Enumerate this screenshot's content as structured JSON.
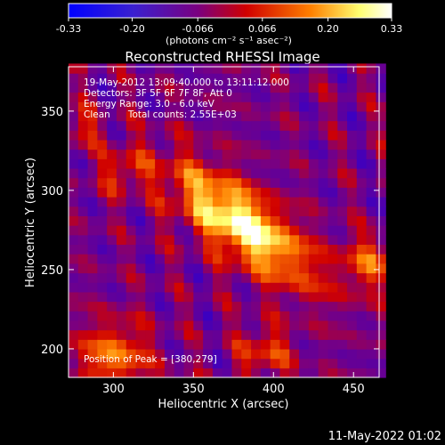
{
  "colorbar": {
    "tick_labels": [
      "-0.33",
      "-0.20",
      "-0.066",
      "0.066",
      "0.20",
      "0.33"
    ],
    "tick_values": [
      -0.33,
      -0.2,
      -0.066,
      0.066,
      0.2,
      0.33
    ],
    "range": [
      -0.33,
      0.33
    ],
    "unit_label": "(photons cm⁻² s⁻¹ asec⁻²)"
  },
  "chart_data": {
    "type": "heatmap",
    "title": "Reconstructed RHESSI Image",
    "xlabel": "Heliocentric X (arcsec)",
    "ylabel": "Heliocentric Y (arcsec)",
    "xlim": [
      272,
      466
    ],
    "ylim": [
      182,
      378
    ],
    "x_ticks": [
      300,
      350,
      400,
      450
    ],
    "y_ticks": [
      200,
      250,
      300,
      350
    ],
    "annotations": [
      "19-May-2012 13:09:40.000 to 13:11:12.000",
      "Detectors: 3F 5F 6F 7F 8F, Att 0",
      "Energy Range: 3.0 - 6.0 keV",
      "Clean      Total counts: 2.55E+03"
    ],
    "peak_label": "Position of Peak = [380,279]",
    "peak": [
      380,
      279
    ],
    "color_range": [
      -0.33,
      0.33
    ],
    "colormap_colors": [
      "#0000ff",
      "#7a0080",
      "#d00000",
      "#ff8000",
      "#ffff70",
      "#ffffff"
    ]
  },
  "footer": {
    "date": "11-May-2022 01:02"
  }
}
